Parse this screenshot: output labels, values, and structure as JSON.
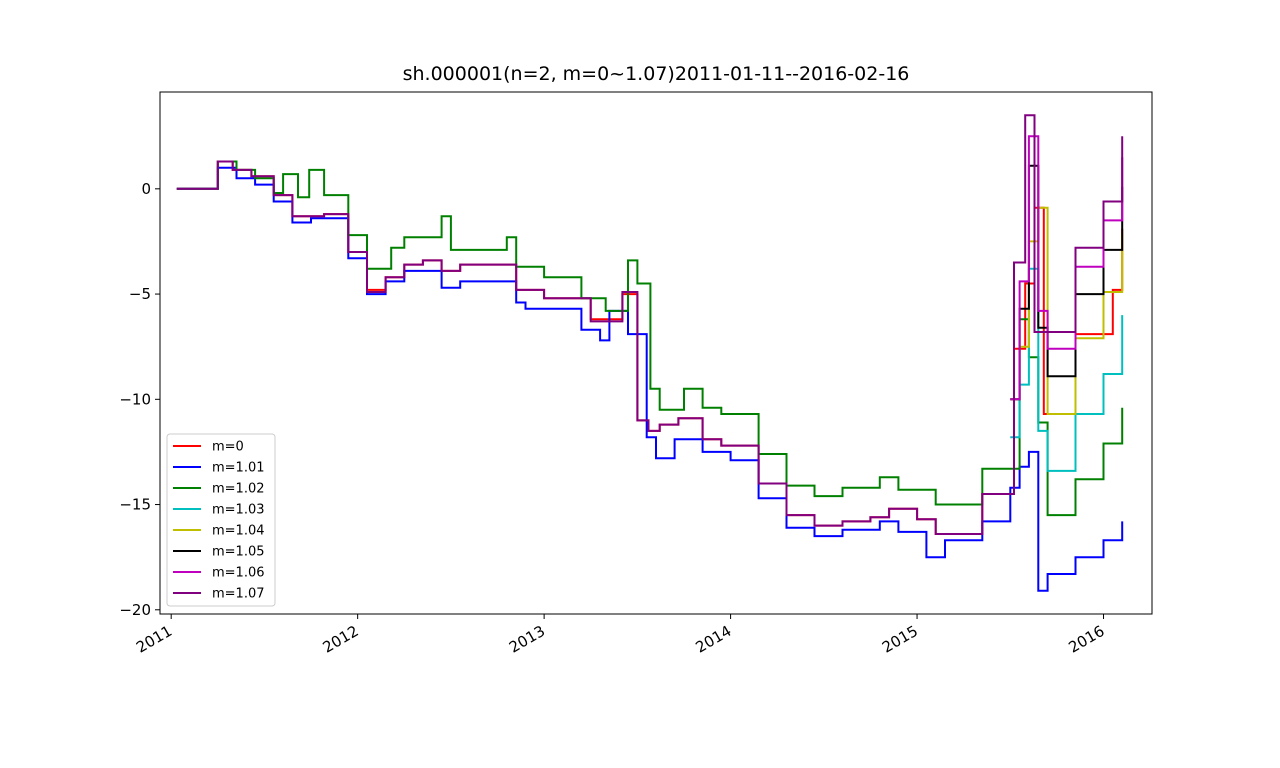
{
  "chart_data": {
    "type": "line",
    "title": "sh.000001(n=2, m=0~1.07)2011-01-11--2016-02-16",
    "xlabel": "",
    "ylabel": "",
    "xlim": [
      2010.94,
      2016.26
    ],
    "ylim": [
      -20.2,
      4.6
    ],
    "x_ticks": [
      2011,
      2012,
      2013,
      2014,
      2015,
      2016
    ],
    "x_tick_labels": [
      "2011",
      "2012",
      "2013",
      "2014",
      "2015",
      "2016"
    ],
    "y_ticks": [
      0,
      -5,
      -10,
      -15,
      -20
    ],
    "y_tick_labels": [
      "0",
      "−5",
      "−10",
      "−15",
      "−20"
    ],
    "grid": false,
    "legend_position": "lower-left",
    "series": [
      {
        "name": "m=0",
        "color": "#ff0000",
        "x": [
          2011.03,
          2011.25,
          2011.33,
          2011.43,
          2011.55,
          2011.65,
          2011.82,
          2011.95,
          2012.05,
          2012.15,
          2012.25,
          2012.35,
          2012.45,
          2012.55,
          2012.85,
          2013.0,
          2013.25,
          2013.42,
          2013.5,
          2013.56,
          2013.62,
          2013.72,
          2013.85,
          2013.95,
          2014.15,
          2014.3,
          2014.45,
          2014.6,
          2014.75,
          2014.85,
          2015.0,
          2015.1,
          2015.35,
          2015.52,
          2015.58,
          2015.63,
          2015.68,
          2015.85,
          2016.0,
          2016.05,
          2016.1
        ],
        "y": [
          0.0,
          1.3,
          0.9,
          0.6,
          -0.3,
          -1.3,
          -1.2,
          -3.0,
          -4.8,
          -4.2,
          -3.6,
          -3.4,
          -3.9,
          -3.6,
          -4.8,
          -5.2,
          -6.2,
          -5.0,
          -11.0,
          -11.5,
          -11.2,
          -10.9,
          -11.9,
          -12.2,
          -14.0,
          -15.5,
          -16.0,
          -15.8,
          -15.6,
          -15.2,
          -15.7,
          -16.4,
          -14.5,
          -7.6,
          -4.5,
          -0.9,
          -10.7,
          -6.9,
          -6.9,
          -4.8,
          -1.9
        ]
      },
      {
        "name": "m=1.01",
        "color": "#0000ff",
        "x": [
          2011.03,
          2011.25,
          2011.35,
          2011.45,
          2011.55,
          2011.65,
          2011.75,
          2011.95,
          2012.05,
          2012.15,
          2012.25,
          2012.4,
          2012.45,
          2012.55,
          2012.85,
          2012.9,
          2013.2,
          2013.3,
          2013.35,
          2013.45,
          2013.55,
          2013.6,
          2013.7,
          2013.85,
          2014.0,
          2014.15,
          2014.3,
          2014.45,
          2014.6,
          2014.8,
          2014.9,
          2015.05,
          2015.15,
          2015.35,
          2015.5,
          2015.55,
          2015.6,
          2015.65,
          2015.7,
          2015.85,
          2016.0,
          2016.1
        ],
        "y": [
          0.0,
          1.0,
          0.5,
          0.2,
          -0.6,
          -1.6,
          -1.4,
          -3.3,
          -5.0,
          -4.4,
          -3.9,
          -3.9,
          -4.7,
          -4.4,
          -5.4,
          -5.7,
          -6.7,
          -7.2,
          -5.8,
          -6.9,
          -11.8,
          -12.8,
          -11.9,
          -12.5,
          -12.9,
          -14.7,
          -16.1,
          -16.5,
          -16.2,
          -15.8,
          -16.3,
          -17.5,
          -16.7,
          -15.8,
          -14.2,
          -13.2,
          -12.5,
          -19.1,
          -18.3,
          -17.5,
          -16.7,
          -15.8
        ]
      },
      {
        "name": "m=1.02",
        "color": "#008000",
        "x": [
          2011.03,
          2011.25,
          2011.35,
          2011.45,
          2011.55,
          2011.6,
          2011.68,
          2011.74,
          2011.82,
          2011.95,
          2012.05,
          2012.18,
          2012.25,
          2012.45,
          2012.5,
          2012.8,
          2012.85,
          2013.0,
          2013.2,
          2013.33,
          2013.45,
          2013.5,
          2013.57,
          2013.62,
          2013.75,
          2013.85,
          2013.95,
          2014.15,
          2014.3,
          2014.45,
          2014.6,
          2014.8,
          2014.9,
          2015.1,
          2015.35,
          2015.55,
          2015.6,
          2015.65,
          2015.7,
          2015.85,
          2016.0,
          2016.1
        ],
        "y": [
          0.0,
          1.3,
          0.9,
          0.5,
          -0.2,
          0.7,
          -0.4,
          0.9,
          -0.3,
          -2.2,
          -3.8,
          -2.8,
          -2.3,
          -1.3,
          -2.9,
          -2.3,
          -3.7,
          -4.2,
          -5.2,
          -5.8,
          -3.4,
          -4.5,
          -9.5,
          -10.5,
          -9.5,
          -10.4,
          -10.7,
          -12.6,
          -14.1,
          -14.6,
          -14.2,
          -13.7,
          -14.3,
          -15.0,
          -13.3,
          -6.2,
          -8.0,
          -11.1,
          -15.5,
          -13.8,
          -12.1,
          -10.4
        ]
      },
      {
        "name": "m=1.03",
        "color": "#00bfbf",
        "x": [
          2015.5,
          2015.55,
          2015.6,
          2015.65,
          2015.7,
          2015.85,
          2016.0,
          2016.1
        ],
        "y": [
          -11.8,
          -9.3,
          -3.8,
          -11.5,
          -13.4,
          -10.7,
          -8.8,
          -6.0
        ]
      },
      {
        "name": "m=1.04",
        "color": "#bfbf00",
        "x": [
          2015.5,
          2015.55,
          2015.6,
          2015.65,
          2015.7,
          2015.85,
          2016.0,
          2016.1
        ],
        "y": [
          -10.0,
          -7.5,
          -2.5,
          -0.9,
          -10.7,
          -7.1,
          -4.9,
          -2.1
        ]
      },
      {
        "name": "m=1.05",
        "color": "#000000",
        "x": [
          2015.5,
          2015.55,
          2015.6,
          2015.65,
          2015.7,
          2015.85,
          2016.0,
          2016.1
        ],
        "y": [
          -10.0,
          -5.7,
          1.1,
          -6.6,
          -8.9,
          -5.0,
          -2.9,
          0.1
        ]
      },
      {
        "name": "m=1.06",
        "color": "#bf00bf",
        "x": [
          2015.5,
          2015.55,
          2015.6,
          2015.65,
          2015.7,
          2015.85,
          2016.0,
          2016.1
        ],
        "y": [
          -10.0,
          -4.4,
          2.5,
          -5.8,
          -7.6,
          -3.7,
          -1.5,
          1.5
        ]
      },
      {
        "name": "m=1.07",
        "color": "#800080",
        "x": [
          2011.03,
          2011.25,
          2011.33,
          2011.43,
          2011.55,
          2011.65,
          2011.82,
          2011.95,
          2012.05,
          2012.15,
          2012.25,
          2012.35,
          2012.45,
          2012.55,
          2012.85,
          2013.0,
          2013.25,
          2013.42,
          2013.5,
          2013.56,
          2013.62,
          2013.72,
          2013.85,
          2013.95,
          2014.15,
          2014.3,
          2014.45,
          2014.6,
          2014.75,
          2014.85,
          2015.0,
          2015.1,
          2015.35,
          2015.52,
          2015.58,
          2015.63,
          2015.68,
          2015.85,
          2016.0,
          2016.05,
          2016.1
        ],
        "y": [
          0.0,
          1.3,
          0.9,
          0.6,
          -0.3,
          -1.3,
          -1.2,
          -3.0,
          -4.9,
          -4.2,
          -3.6,
          -3.4,
          -3.9,
          -3.6,
          -4.8,
          -5.2,
          -6.3,
          -4.9,
          -11.0,
          -11.5,
          -11.2,
          -10.9,
          -11.9,
          -12.2,
          -14.0,
          -15.5,
          -16.0,
          -15.8,
          -15.6,
          -15.2,
          -15.7,
          -16.4,
          -14.5,
          -3.5,
          3.5,
          -6.8,
          -6.8,
          -2.8,
          -0.6,
          -0.6,
          2.5
        ]
      }
    ]
  }
}
